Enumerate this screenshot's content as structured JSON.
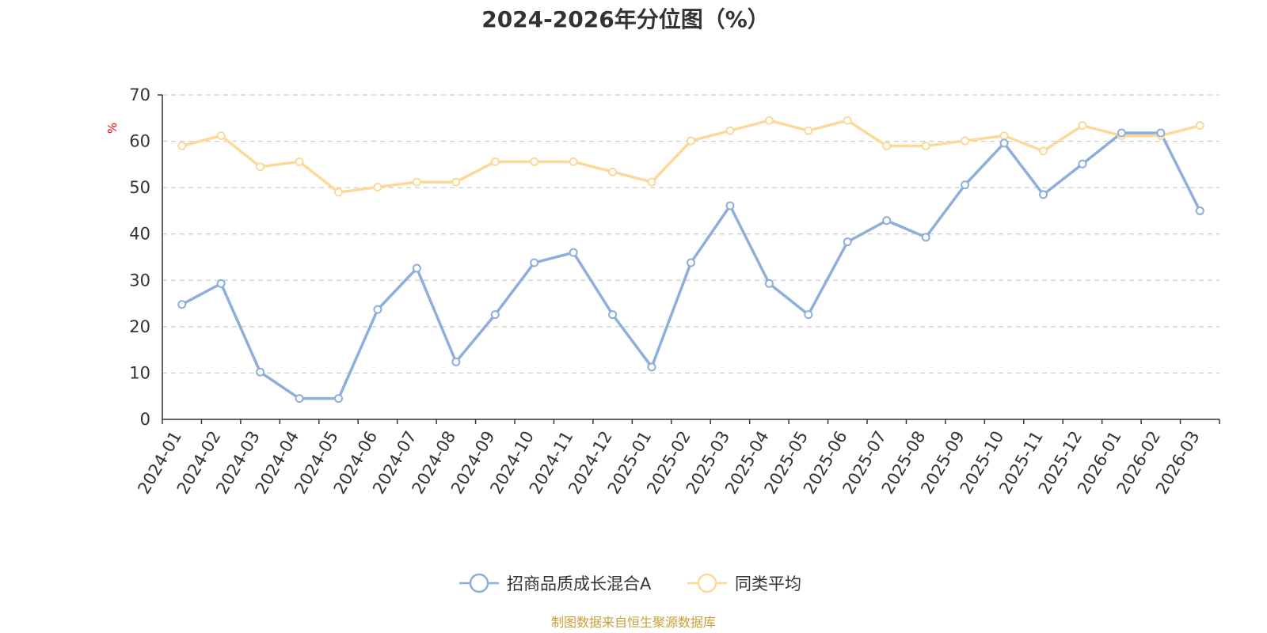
{
  "chart_data": {
    "type": "line",
    "title": "2024-2026年分位图（%）",
    "unit_label": "%",
    "ylim": [
      0,
      70
    ],
    "yticks": [
      0,
      10,
      20,
      30,
      40,
      50,
      60,
      70
    ],
    "grid": true,
    "legend_position": "bottom-center",
    "categories": [
      "2024-01",
      "2024-02",
      "2024-03",
      "2024-04",
      "2024-05",
      "2024-06",
      "2024-07",
      "2024-08",
      "2024-09",
      "2024-10",
      "2024-11",
      "2024-12",
      "2025-01",
      "2025-02",
      "2025-03",
      "2025-04",
      "2025-05",
      "2025-06",
      "2025-07",
      "2025-08",
      "2025-09",
      "2025-10",
      "2025-11",
      "2025-12",
      "2026-01",
      "2026-02",
      "2026-03"
    ],
    "series": [
      {
        "name": "招商品质成长混合A",
        "color": "#8eaedb",
        "values": [
          24.8,
          29.3,
          10.2,
          4.5,
          4.5,
          23.7,
          32.6,
          12.4,
          22.6,
          33.8,
          36.0,
          22.6,
          11.3,
          33.8,
          46.1,
          29.3,
          22.6,
          38.3,
          42.9,
          39.3,
          50.6,
          59.6,
          48.5,
          55.1,
          61.8,
          61.8,
          45.0
        ]
      },
      {
        "name": "同类平均",
        "color": "#fcd998",
        "values": [
          59.0,
          61.2,
          54.5,
          55.6,
          49.0,
          50.1,
          51.2,
          51.2,
          55.6,
          55.6,
          55.6,
          53.4,
          51.2,
          60.1,
          62.3,
          64.5,
          62.3,
          64.5,
          59.0,
          59.0,
          60.1,
          61.2,
          57.9,
          63.4,
          61.2,
          61.2,
          63.4
        ]
      }
    ]
  },
  "source_text": "制图数据来自恒生聚源数据库"
}
